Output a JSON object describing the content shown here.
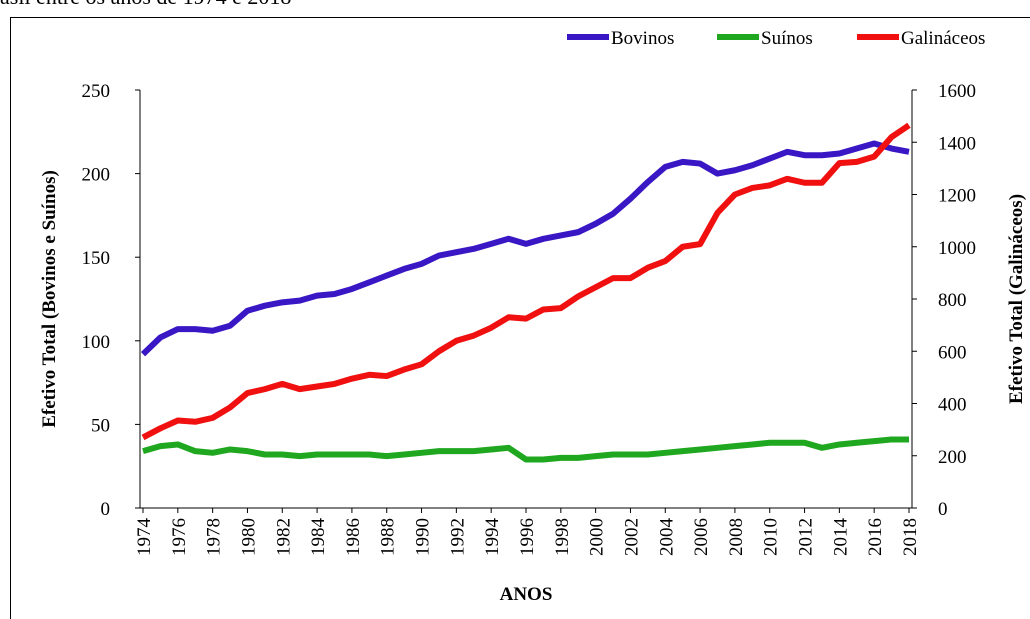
{
  "chart_data": {
    "type": "line",
    "title": "asil entre os anos de 1974 e 2018",
    "y_label": "Efetivo Total (Bovinos e Suínos)",
    "y2_label": "Efetivo Total (Galináceos)",
    "x_label": "ANOS",
    "x": [
      1974,
      1975,
      1976,
      1977,
      1978,
      1979,
      1980,
      1981,
      1982,
      1983,
      1984,
      1985,
      1986,
      1987,
      1988,
      1989,
      1990,
      1991,
      1992,
      1993,
      1994,
      1995,
      1996,
      1997,
      1998,
      1999,
      2000,
      2001,
      2002,
      2003,
      2004,
      2005,
      2006,
      2007,
      2008,
      2009,
      2010,
      2011,
      2012,
      2013,
      2014,
      2015,
      2016,
      2017,
      2018
    ],
    "xlim": [
      1974,
      2018
    ],
    "xticks": [
      1974,
      1976,
      1978,
      1980,
      1982,
      1984,
      1986,
      1988,
      1990,
      1992,
      1994,
      1996,
      1998,
      2000,
      2002,
      2004,
      2006,
      2008,
      2010,
      2012,
      2014,
      2016,
      2018
    ],
    "ylim": [
      0,
      250
    ],
    "yticks": [
      0,
      50,
      100,
      150,
      200,
      250
    ],
    "y2lim": [
      0,
      1600
    ],
    "y2ticks": [
      0,
      200,
      400,
      600,
      800,
      1000,
      1200,
      1400,
      1600
    ],
    "grid": false,
    "legend": "top-right",
    "series": [
      {
        "name": "Bovinos",
        "color": "#3a17c4",
        "values": [
          92,
          102,
          107,
          107,
          106,
          109,
          118,
          121,
          123,
          124,
          127,
          128,
          131,
          135,
          139,
          143,
          146,
          151,
          153,
          155,
          158,
          161,
          158,
          161,
          163,
          165,
          170,
          176,
          185,
          195,
          204,
          207,
          206,
          200,
          202,
          205,
          209,
          213,
          211,
          211,
          212,
          215,
          218,
          215,
          213
        ]
      },
      {
        "name": "Suínos",
        "color": "#1fa81f",
        "values": [
          34,
          37,
          38,
          34,
          33,
          35,
          34,
          32,
          32,
          31,
          32,
          32,
          32,
          32,
          31,
          32,
          33,
          34,
          34,
          34,
          35,
          36,
          29,
          29,
          30,
          30,
          31,
          32,
          32,
          32,
          33,
          34,
          35,
          36,
          37,
          38,
          39,
          39,
          39,
          36,
          38,
          39,
          40,
          41,
          41
        ]
      },
      {
        "name": "Galináceos",
        "color": "#f01010",
        "axis": "y2",
        "values": [
          270,
          305,
          335,
          330,
          345,
          385,
          440,
          455,
          475,
          455,
          465,
          475,
          495,
          510,
          505,
          530,
          550,
          600,
          640,
          660,
          690,
          730,
          725,
          760,
          765,
          810,
          845,
          880,
          880,
          920,
          945,
          1000,
          1010,
          1130,
          1200,
          1225,
          1235,
          1260,
          1245,
          1245,
          1320,
          1325,
          1345,
          1420,
          1465
        ]
      }
    ]
  }
}
